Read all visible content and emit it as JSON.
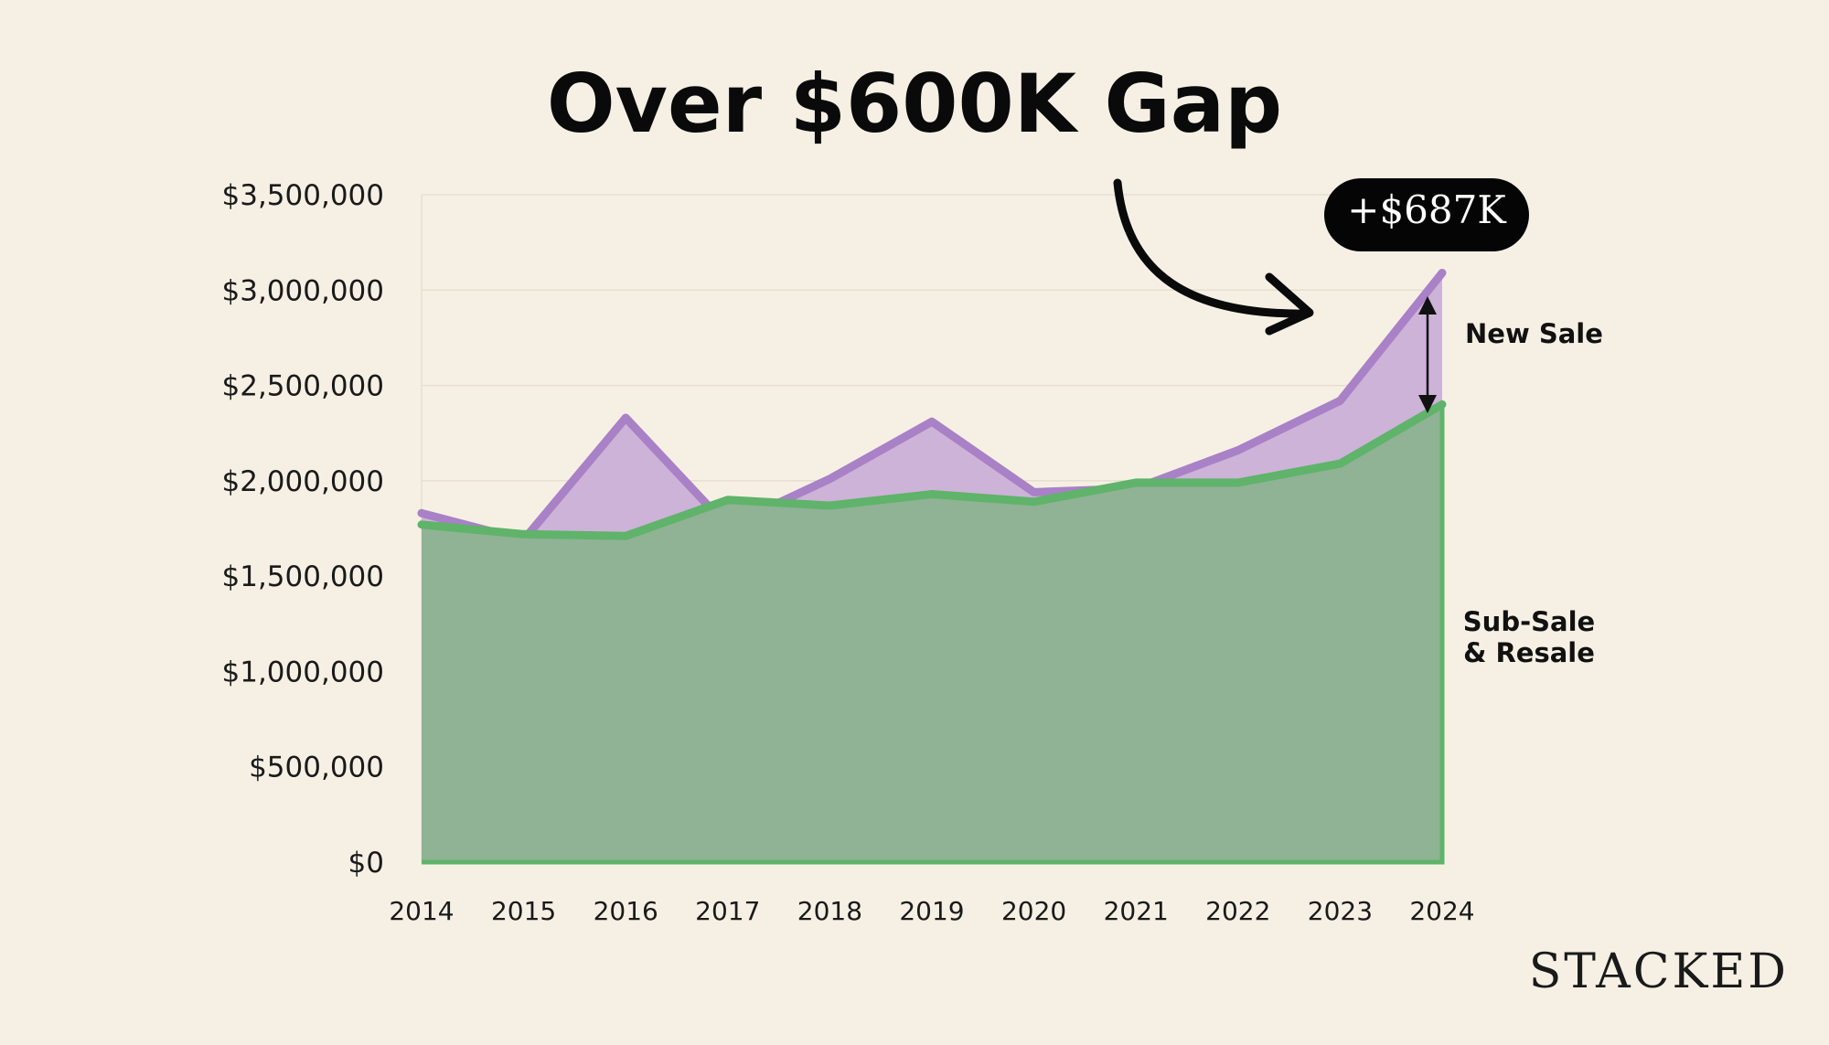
{
  "chart_data": {
    "type": "area",
    "title": "Over $600K Gap",
    "categories": [
      "2014",
      "2015",
      "2016",
      "2017",
      "2018",
      "2019",
      "2020",
      "2021",
      "2022",
      "2023",
      "2024"
    ],
    "series": [
      {
        "name": "New Sale",
        "color": "#a981c6",
        "fill": "#cdb3d8",
        "values": [
          1830000,
          1690000,
          2330000,
          1760000,
          2010000,
          2310000,
          1940000,
          1960000,
          2160000,
          2420000,
          3090000
        ]
      },
      {
        "name": "Sub-Sale & Resale",
        "color": "#5fb36a",
        "fill": "#8fb394",
        "values": [
          1770000,
          1720000,
          1710000,
          1900000,
          1870000,
          1930000,
          1890000,
          1990000,
          1990000,
          2090000,
          2400000
        ]
      }
    ],
    "yticks": [
      "$0",
      "$500,000",
      "$1,000,000",
      "$1,500,000",
      "$2,000,000",
      "$2,500,000",
      "$3,000,000",
      "$3,500,000"
    ],
    "ylim": [
      0,
      3500000
    ],
    "annotation": "+$687K",
    "labels": {
      "new_sale": "New Sale",
      "resale_line1": "Sub-Sale",
      "resale_line2": "& Resale"
    }
  },
  "brand": "STACKED"
}
